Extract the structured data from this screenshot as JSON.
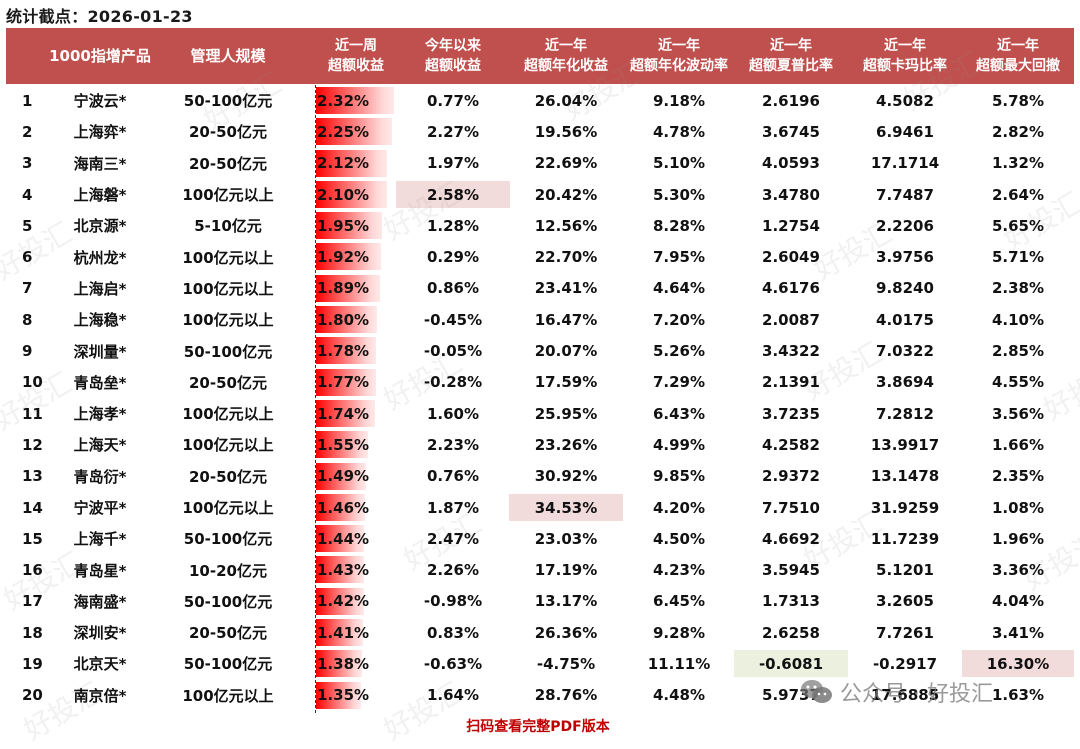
{
  "title": "统计截点：2026-01-23",
  "columns": [
    {
      "key": "rank",
      "label": ""
    },
    {
      "key": "product",
      "label": "1000指增产品"
    },
    {
      "key": "scale",
      "label": "管理人规模"
    },
    {
      "key": "week_excess",
      "line1": "近一周",
      "line2": "超额收益"
    },
    {
      "key": "ytd_excess",
      "line1": "今年以来",
      "line2": "超额收益"
    },
    {
      "key": "annual_excess",
      "line1": "近一年",
      "line2": "超额年化收益"
    },
    {
      "key": "annual_vol",
      "line1": "近一年",
      "line2": "超额年化波动率"
    },
    {
      "key": "sharpe",
      "line1": "近一年",
      "line2": "超额夏普比率"
    },
    {
      "key": "calmar",
      "line1": "近一年",
      "line2": "超额卡玛比率"
    },
    {
      "key": "max_dd",
      "line1": "近一年",
      "line2": "超额最大回撤"
    }
  ],
  "rows": [
    {
      "rank": "1",
      "product": "宁波云*",
      "scale": "50-100亿元",
      "week_excess": "2.32%",
      "week_value": 2.32,
      "ytd_excess": "0.77%",
      "annual_excess": "26.04%",
      "annual_vol": "9.18%",
      "sharpe": "2.6196",
      "calmar": "4.5082",
      "max_dd": "5.78%"
    },
    {
      "rank": "2",
      "product": "上海弈*",
      "scale": "20-50亿元",
      "week_excess": "2.25%",
      "week_value": 2.25,
      "ytd_excess": "2.27%",
      "annual_excess": "19.56%",
      "annual_vol": "4.78%",
      "sharpe": "3.6745",
      "calmar": "6.9461",
      "max_dd": "2.82%"
    },
    {
      "rank": "3",
      "product": "海南三*",
      "scale": "20-50亿元",
      "week_excess": "2.12%",
      "week_value": 2.12,
      "ytd_excess": "1.97%",
      "annual_excess": "22.69%",
      "annual_vol": "5.10%",
      "sharpe": "4.0593",
      "calmar": "17.1714",
      "max_dd": "1.32%"
    },
    {
      "rank": "4",
      "product": "上海磐*",
      "scale": "100亿元以上",
      "week_excess": "2.10%",
      "week_value": 2.1,
      "ytd_excess": "2.58%",
      "annual_excess": "20.42%",
      "annual_vol": "5.30%",
      "sharpe": "3.4780",
      "calmar": "7.7487",
      "max_dd": "2.64%"
    },
    {
      "rank": "5",
      "product": "北京源*",
      "scale": "5-10亿元",
      "week_excess": "1.95%",
      "week_value": 1.95,
      "ytd_excess": "1.28%",
      "annual_excess": "12.56%",
      "annual_vol": "8.28%",
      "sharpe": "1.2754",
      "calmar": "2.2206",
      "max_dd": "5.65%"
    },
    {
      "rank": "6",
      "product": "杭州龙*",
      "scale": "100亿元以上",
      "week_excess": "1.92%",
      "week_value": 1.92,
      "ytd_excess": "0.29%",
      "annual_excess": "22.70%",
      "annual_vol": "7.95%",
      "sharpe": "2.6049",
      "calmar": "3.9756",
      "max_dd": "5.71%"
    },
    {
      "rank": "7",
      "product": "上海启*",
      "scale": "100亿元以上",
      "week_excess": "1.89%",
      "week_value": 1.89,
      "ytd_excess": "0.86%",
      "annual_excess": "23.41%",
      "annual_vol": "4.64%",
      "sharpe": "4.6176",
      "calmar": "9.8240",
      "max_dd": "2.38%"
    },
    {
      "rank": "8",
      "product": "上海稳*",
      "scale": "100亿元以上",
      "week_excess": "1.80%",
      "week_value": 1.8,
      "ytd_excess": "-0.45%",
      "annual_excess": "16.47%",
      "annual_vol": "7.20%",
      "sharpe": "2.0087",
      "calmar": "4.0175",
      "max_dd": "4.10%"
    },
    {
      "rank": "9",
      "product": "深圳量*",
      "scale": "50-100亿元",
      "week_excess": "1.78%",
      "week_value": 1.78,
      "ytd_excess": "-0.05%",
      "annual_excess": "20.07%",
      "annual_vol": "5.26%",
      "sharpe": "3.4322",
      "calmar": "7.0322",
      "max_dd": "2.85%"
    },
    {
      "rank": "10",
      "product": "青岛垒*",
      "scale": "20-50亿元",
      "week_excess": "1.77%",
      "week_value": 1.77,
      "ytd_excess": "-0.28%",
      "annual_excess": "17.59%",
      "annual_vol": "7.29%",
      "sharpe": "2.1391",
      "calmar": "3.8694",
      "max_dd": "4.55%"
    },
    {
      "rank": "11",
      "product": "上海孝*",
      "scale": "100亿元以上",
      "week_excess": "1.74%",
      "week_value": 1.74,
      "ytd_excess": "1.60%",
      "annual_excess": "25.95%",
      "annual_vol": "6.43%",
      "sharpe": "3.7235",
      "calmar": "7.2812",
      "max_dd": "3.56%"
    },
    {
      "rank": "12",
      "product": "上海天*",
      "scale": "100亿元以上",
      "week_excess": "1.55%",
      "week_value": 1.55,
      "ytd_excess": "2.23%",
      "annual_excess": "23.26%",
      "annual_vol": "4.99%",
      "sharpe": "4.2582",
      "calmar": "13.9917",
      "max_dd": "1.66%"
    },
    {
      "rank": "13",
      "product": "青岛衍*",
      "scale": "20-50亿元",
      "week_excess": "1.49%",
      "week_value": 1.49,
      "ytd_excess": "0.76%",
      "annual_excess": "30.92%",
      "annual_vol": "9.85%",
      "sharpe": "2.9372",
      "calmar": "13.1478",
      "max_dd": "2.35%"
    },
    {
      "rank": "14",
      "product": "宁波平*",
      "scale": "100亿元以上",
      "week_excess": "1.46%",
      "week_value": 1.46,
      "ytd_excess": "1.87%",
      "annual_excess": "34.53%",
      "annual_vol": "4.20%",
      "sharpe": "7.7510",
      "calmar": "31.9259",
      "max_dd": "1.08%"
    },
    {
      "rank": "15",
      "product": "上海千*",
      "scale": "50-100亿元",
      "week_excess": "1.44%",
      "week_value": 1.44,
      "ytd_excess": "2.47%",
      "annual_excess": "23.03%",
      "annual_vol": "4.50%",
      "sharpe": "4.6692",
      "calmar": "11.7239",
      "max_dd": "1.96%"
    },
    {
      "rank": "16",
      "product": "青岛星*",
      "scale": "10-20亿元",
      "week_excess": "1.43%",
      "week_value": 1.43,
      "ytd_excess": "2.26%",
      "annual_excess": "17.19%",
      "annual_vol": "4.23%",
      "sharpe": "3.5945",
      "calmar": "5.1201",
      "max_dd": "3.36%"
    },
    {
      "rank": "17",
      "product": "海南盛*",
      "scale": "50-100亿元",
      "week_excess": "1.42%",
      "week_value": 1.42,
      "ytd_excess": "-0.98%",
      "annual_excess": "13.17%",
      "annual_vol": "6.45%",
      "sharpe": "1.7313",
      "calmar": "3.2605",
      "max_dd": "4.04%"
    },
    {
      "rank": "18",
      "product": "深圳安*",
      "scale": "20-50亿元",
      "week_excess": "1.41%",
      "week_value": 1.41,
      "ytd_excess": "0.83%",
      "annual_excess": "26.36%",
      "annual_vol": "9.28%",
      "sharpe": "2.6258",
      "calmar": "7.7261",
      "max_dd": "3.41%"
    },
    {
      "rank": "19",
      "product": "北京天*",
      "scale": "50-100亿元",
      "week_excess": "1.38%",
      "week_value": 1.38,
      "ytd_excess": "-0.63%",
      "annual_excess": "-4.75%",
      "annual_vol": "11.11%",
      "sharpe": "-0.6081",
      "calmar": "-0.2917",
      "max_dd": "16.30%"
    },
    {
      "rank": "20",
      "product": "南京倍*",
      "scale": "100亿元以上",
      "week_excess": "1.35%",
      "week_value": 1.35,
      "ytd_excess": "1.64%",
      "annual_excess": "28.76%",
      "annual_vol": "4.48%",
      "sharpe": "5.9737",
      "calmar": "17.6885",
      "max_dd": "1.63%"
    }
  ],
  "highlights": [
    {
      "row": 3,
      "col": "ytd_excess",
      "color": "#f2dcdb"
    },
    {
      "row": 13,
      "col": "annual_excess",
      "color": "#f2dcdb"
    },
    {
      "row": 18,
      "col": "sharpe",
      "color": "#ebf1de"
    },
    {
      "row": 18,
      "col": "max_dd",
      "color": "#f2dcdb"
    }
  ],
  "colors": {
    "header_bg": "#c0504d",
    "header_text": "#ffffff",
    "bar_start": "#ff0000",
    "bar_end": "#ffe9e9",
    "highlight_red": "#f2dcdb",
    "highlight_green": "#ebf1de",
    "footer_text": "#c00000"
  },
  "footer": {
    "cta": "扫码查看完整PDF版本"
  },
  "brand": {
    "label": "公众号 · 好投汇",
    "icon": "wechat-icon"
  },
  "watermark": {
    "text": "好投汇"
  }
}
